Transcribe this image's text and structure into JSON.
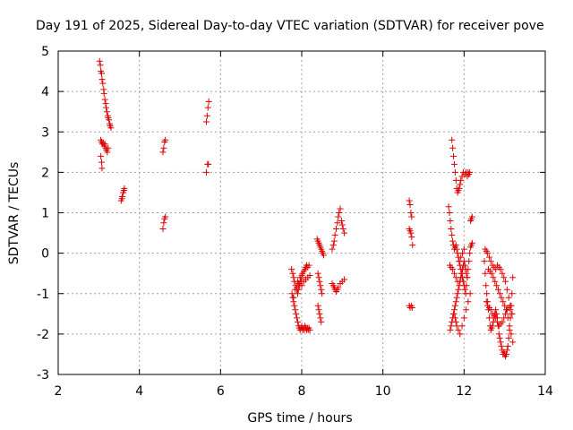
{
  "chart_data": {
    "type": "scatter",
    "title": "Day 191 of 2025, Sidereal Day-to-day VTEC variation (SDTVAR) for receiver pove",
    "xlabel": "GPS time / hours",
    "ylabel": "SDTVAR / TECUs",
    "xlim": [
      2,
      14
    ],
    "ylim": [
      -3,
      5
    ],
    "xticks": [
      "2",
      "4",
      "6",
      "8",
      "10",
      "12",
      "14"
    ],
    "yticks": [
      "-3",
      "-2",
      "-1",
      "0",
      "1",
      "2",
      "3",
      "4",
      "5"
    ],
    "grid": true,
    "marker": "+",
    "color": "#e00000",
    "series": [
      {
        "x": [
          3.02,
          3.04,
          3.05,
          3.07,
          3.08,
          3.1,
          3.12,
          3.13,
          3.15,
          3.17,
          3.18,
          3.2,
          3.22,
          3.23,
          3.25,
          3.27,
          3.28,
          3.3,
          3.05,
          3.07,
          3.09,
          3.11,
          3.13,
          3.15,
          3.17,
          3.19,
          3.21,
          3.23,
          3.05,
          3.07,
          3.08,
          3.55,
          3.57,
          3.58,
          3.6,
          3.62,
          3.63,
          4.58,
          4.6,
          4.62,
          4.64,
          4.58,
          4.6,
          4.62,
          4.64,
          5.65,
          5.67,
          5.69,
          5.71,
          5.65,
          5.68,
          5.7
        ],
        "y": [
          4.75,
          4.65,
          4.5,
          4.45,
          4.3,
          4.2,
          4.05,
          3.95,
          3.8,
          3.7,
          3.6,
          3.5,
          3.4,
          3.35,
          3.3,
          3.2,
          3.15,
          3.1,
          2.8,
          2.75,
          2.7,
          2.72,
          2.65,
          2.7,
          2.6,
          2.55,
          2.5,
          2.6,
          2.4,
          2.25,
          2.1,
          1.3,
          1.35,
          1.4,
          1.5,
          1.55,
          1.6,
          2.5,
          2.6,
          2.75,
          2.8,
          0.6,
          0.75,
          0.85,
          0.9,
          3.25,
          3.4,
          3.6,
          3.75,
          2.0,
          2.2,
          2.2
        ]
      },
      {
        "x": [
          7.75,
          7.78,
          7.8,
          7.82,
          7.85,
          7.88,
          7.9,
          7.92,
          7.95,
          7.98,
          8.0,
          8.02,
          8.05,
          8.08,
          8.1,
          8.12,
          8.15,
          8.18,
          7.78,
          7.8,
          7.82,
          7.84,
          7.86,
          7.88,
          7.9,
          7.92,
          7.94,
          7.96,
          7.98,
          8.0,
          8.02,
          8.04,
          8.06,
          8.08,
          8.1,
          8.12,
          8.14,
          8.16,
          8.18,
          8.2,
          7.9,
          7.95,
          8.0,
          8.05,
          8.1,
          8.15,
          8.2,
          7.76,
          7.8,
          7.84,
          7.88,
          7.92,
          7.96,
          8.0
        ],
        "y": [
          -0.4,
          -0.5,
          -0.6,
          -0.7,
          -0.8,
          -0.9,
          -1.0,
          -0.9,
          -0.8,
          -0.7,
          -0.6,
          -0.5,
          -0.45,
          -0.4,
          -0.35,
          -0.3,
          -0.35,
          -0.3,
          -1.1,
          -1.2,
          -1.3,
          -1.4,
          -1.5,
          -1.6,
          -1.7,
          -1.8,
          -1.85,
          -1.9,
          -1.85,
          -1.8,
          -1.9,
          -1.85,
          -1.9,
          -1.8,
          -1.85,
          -1.9,
          -1.85,
          -1.9,
          -1.85,
          -1.9,
          -0.7,
          -0.75,
          -0.8,
          -0.7,
          -0.65,
          -0.6,
          -0.55,
          -1.0,
          -1.1,
          -0.9,
          -0.85,
          -0.75,
          -0.6,
          -0.55
        ]
      },
      {
        "x": [
          8.38,
          8.4,
          8.42,
          8.44,
          8.46,
          8.48,
          8.5,
          8.52,
          8.54,
          8.4,
          8.42,
          8.44,
          8.46,
          8.48,
          8.5,
          8.4,
          8.42,
          8.44,
          8.46,
          8.48,
          8.75,
          8.78,
          8.8,
          8.82,
          8.85,
          8.88,
          8.9,
          8.92,
          8.95,
          8.98,
          9.0,
          9.02,
          9.05,
          8.75,
          8.78,
          8.8,
          8.82,
          8.85,
          8.88,
          8.9,
          8.95,
          9.0,
          9.05
        ],
        "y": [
          0.35,
          0.3,
          0.25,
          0.2,
          0.15,
          0.1,
          0.05,
          0.0,
          -0.05,
          -0.5,
          -0.6,
          -0.7,
          -0.8,
          -0.9,
          -1.0,
          -1.3,
          -1.4,
          -1.5,
          -1.6,
          -1.7,
          0.1,
          0.2,
          0.3,
          0.45,
          0.6,
          0.75,
          0.9,
          1.0,
          1.1,
          0.8,
          0.7,
          0.6,
          0.5,
          -0.75,
          -0.8,
          -0.85,
          -0.9,
          -0.95,
          -0.9,
          -0.85,
          -0.75,
          -0.7,
          -0.65
        ]
      },
      {
        "x": [
          10.65,
          10.67,
          10.69,
          10.71,
          10.65,
          10.67,
          10.69,
          10.71,
          10.73,
          10.65,
          10.67,
          10.7,
          10.72
        ],
        "y": [
          1.3,
          1.2,
          1.0,
          0.9,
          0.6,
          0.55,
          0.5,
          0.4,
          0.2,
          -1.3,
          -1.35,
          -1.3,
          -1.35
        ],
        "note": ""
      },
      {
        "x": [
          11.62,
          11.64,
          11.66,
          11.68,
          11.7,
          11.72,
          11.74,
          11.76,
          11.78,
          11.8,
          11.82,
          11.84,
          11.86,
          11.88,
          11.9,
          11.92,
          11.94,
          11.96,
          11.98,
          12.0,
          12.02,
          12.04,
          12.06,
          12.08,
          12.1,
          12.12,
          12.14,
          12.16,
          12.18,
          12.2,
          11.66,
          11.68,
          11.7,
          11.72,
          11.74,
          11.76,
          11.78,
          11.8,
          11.82,
          11.84,
          11.86,
          11.88,
          11.9,
          11.92,
          11.94,
          11.96,
          11.98,
          12.0,
          12.02,
          12.04,
          12.06,
          12.08,
          11.7,
          11.72,
          11.74,
          11.76,
          11.78,
          11.8,
          11.82,
          11.84,
          11.86,
          11.88,
          11.9,
          11.92,
          11.95,
          11.98,
          12.02,
          12.05,
          12.08,
          12.1,
          12.12,
          12.14,
          12.16,
          12.18,
          12.2,
          11.75,
          11.78,
          11.8,
          11.82,
          11.86,
          11.9,
          11.95,
          12.0,
          12.05,
          12.1,
          12.15,
          11.65,
          11.68,
          11.72,
          11.76,
          11.8,
          11.84,
          11.88,
          11.92,
          11.96,
          12.0
        ],
        "y": [
          1.15,
          1.0,
          0.8,
          0.6,
          0.45,
          0.3,
          0.2,
          0.1,
          0.15,
          0.2,
          0.1,
          0.0,
          -0.1,
          -0.2,
          -0.3,
          -0.4,
          -0.5,
          -0.6,
          -0.7,
          -0.8,
          -0.9,
          -1.0,
          -0.8,
          -0.6,
          -0.4,
          -0.2,
          0.0,
          0.15,
          0.2,
          0.25,
          -1.9,
          -1.8,
          -1.7,
          -1.6,
          -1.5,
          -1.4,
          -1.3,
          -1.2,
          -1.1,
          -1.0,
          -0.9,
          -0.8,
          -0.7,
          -0.6,
          -0.5,
          -0.4,
          -0.3,
          -0.2,
          -0.3,
          -0.4,
          -0.5,
          -0.6,
          2.8,
          2.6,
          2.4,
          2.2,
          2.0,
          1.8,
          1.6,
          1.5,
          1.55,
          1.6,
          1.7,
          1.8,
          1.9,
          2.0,
          1.95,
          2.0,
          1.9,
          2.0,
          1.95,
          2.0,
          0.8,
          0.85,
          0.9,
          -1.5,
          -1.6,
          -1.7,
          -1.8,
          -1.9,
          -2.0,
          -1.8,
          -1.6,
          -1.4,
          -1.2,
          -1.0,
          -0.3,
          -0.35,
          -0.4,
          -0.5,
          -0.6,
          -0.7,
          -0.2,
          -0.1,
          0.0,
          0.1
        ]
      },
      {
        "x": [
          12.5,
          12.52,
          12.54,
          12.56,
          12.58,
          12.6,
          12.62,
          12.64,
          12.66,
          12.68,
          12.7,
          12.72,
          12.74,
          12.76,
          12.78,
          12.8,
          12.82,
          12.84,
          12.86,
          12.88,
          12.9,
          12.92,
          12.94,
          12.96,
          12.98,
          13.0,
          13.02,
          13.04,
          13.06,
          13.08,
          13.1,
          13.12,
          13.14,
          13.16,
          13.18,
          13.2,
          12.52,
          12.55,
          12.58,
          12.62,
          12.66,
          12.7,
          12.74,
          12.78,
          12.82,
          12.86,
          12.9,
          12.94,
          12.98,
          13.02,
          13.06,
          13.1,
          13.14,
          13.18,
          12.55,
          12.58,
          12.62,
          12.66,
          12.7,
          12.74,
          12.78,
          12.82,
          12.86,
          12.9,
          12.94,
          12.98,
          13.02,
          13.06,
          13.1,
          13.14,
          13.18,
          12.6,
          12.64,
          12.68,
          12.72,
          12.76,
          12.8,
          12.84,
          12.88,
          12.92,
          12.96,
          13.0,
          13.04,
          13.08,
          13.12,
          13.16,
          13.2
        ],
        "y": [
          -0.2,
          -0.5,
          -0.8,
          -1.0,
          -1.2,
          -1.4,
          -1.6,
          -1.8,
          -1.9,
          -1.85,
          -1.8,
          -1.7,
          -1.6,
          -1.5,
          -1.4,
          -1.5,
          -1.6,
          -1.8,
          -2.0,
          -2.1,
          -2.2,
          -2.3,
          -2.4,
          -2.5,
          -2.45,
          -2.5,
          -2.55,
          -2.5,
          -2.4,
          -2.3,
          -2.1,
          -1.9,
          -1.6,
          -1.3,
          -1.0,
          -0.6,
          0.1,
          0.05,
          0.0,
          -0.1,
          -0.2,
          -0.3,
          -0.35,
          -0.4,
          -0.3,
          -0.35,
          -0.4,
          -0.5,
          -0.6,
          -0.7,
          -0.9,
          -1.1,
          -1.3,
          -1.5,
          -1.2,
          -1.3,
          -1.35,
          -1.4,
          -1.5,
          -1.55,
          -1.6,
          -1.7,
          -1.8,
          -1.75,
          -1.7,
          -1.6,
          -1.5,
          -1.4,
          -1.35,
          -1.4,
          -1.5,
          -0.4,
          -0.45,
          -0.5,
          -0.6,
          -0.7,
          -0.8,
          -0.9,
          -1.0,
          -1.1,
          -1.2,
          -1.3,
          -1.4,
          -1.6,
          -1.8,
          -2.0,
          -2.2
        ]
      }
    ]
  }
}
